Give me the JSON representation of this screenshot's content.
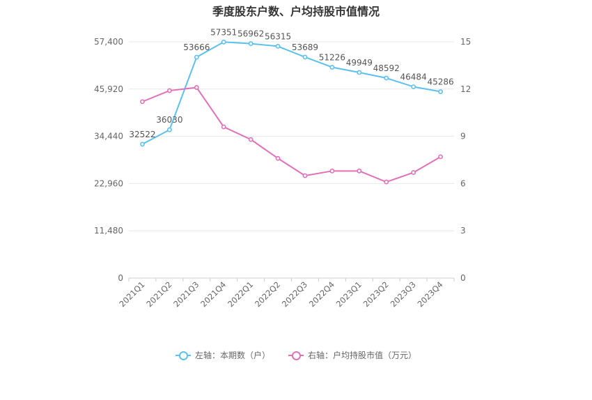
{
  "chart_data": {
    "type": "line",
    "title": "季度股东户数、户均持股市值情况",
    "categories": [
      "2021Q1",
      "2021Q2",
      "2021Q3",
      "2021Q4",
      "2022Q1",
      "2022Q2",
      "2022Q3",
      "2022Q4",
      "2023Q1",
      "2023Q2",
      "2023Q3",
      "2023Q4"
    ],
    "left_axis": {
      "ticks": [
        "0",
        "11,480",
        "22,960",
        "34,440",
        "45,920",
        "57,400"
      ],
      "min": 0,
      "max": 57400
    },
    "right_axis": {
      "ticks": [
        "0",
        "3",
        "6",
        "9",
        "12",
        "15"
      ],
      "min": 0,
      "max": 15
    },
    "series": [
      {
        "name": "左轴：本期数（户）",
        "axis": "left",
        "color": "#5bc0f0",
        "values": [
          32522,
          36030,
          53666,
          57351,
          56962,
          56315,
          53689,
          51226,
          49949,
          48592,
          46484,
          45286
        ],
        "labels": [
          "32522",
          "36030",
          "53666",
          "57351",
          "56962",
          "56315",
          "53689",
          "51226",
          "49949",
          "48592",
          "46484",
          "45286"
        ]
      },
      {
        "name": "右轴：户均持股市值（万元）",
        "axis": "right",
        "color": "#e070b8",
        "values": [
          11.2,
          11.9,
          12.1,
          9.6,
          8.8,
          7.6,
          6.5,
          6.8,
          6.8,
          6.1,
          6.7,
          7.7
        ]
      }
    ],
    "grid": true,
    "legend_position": "bottom"
  }
}
